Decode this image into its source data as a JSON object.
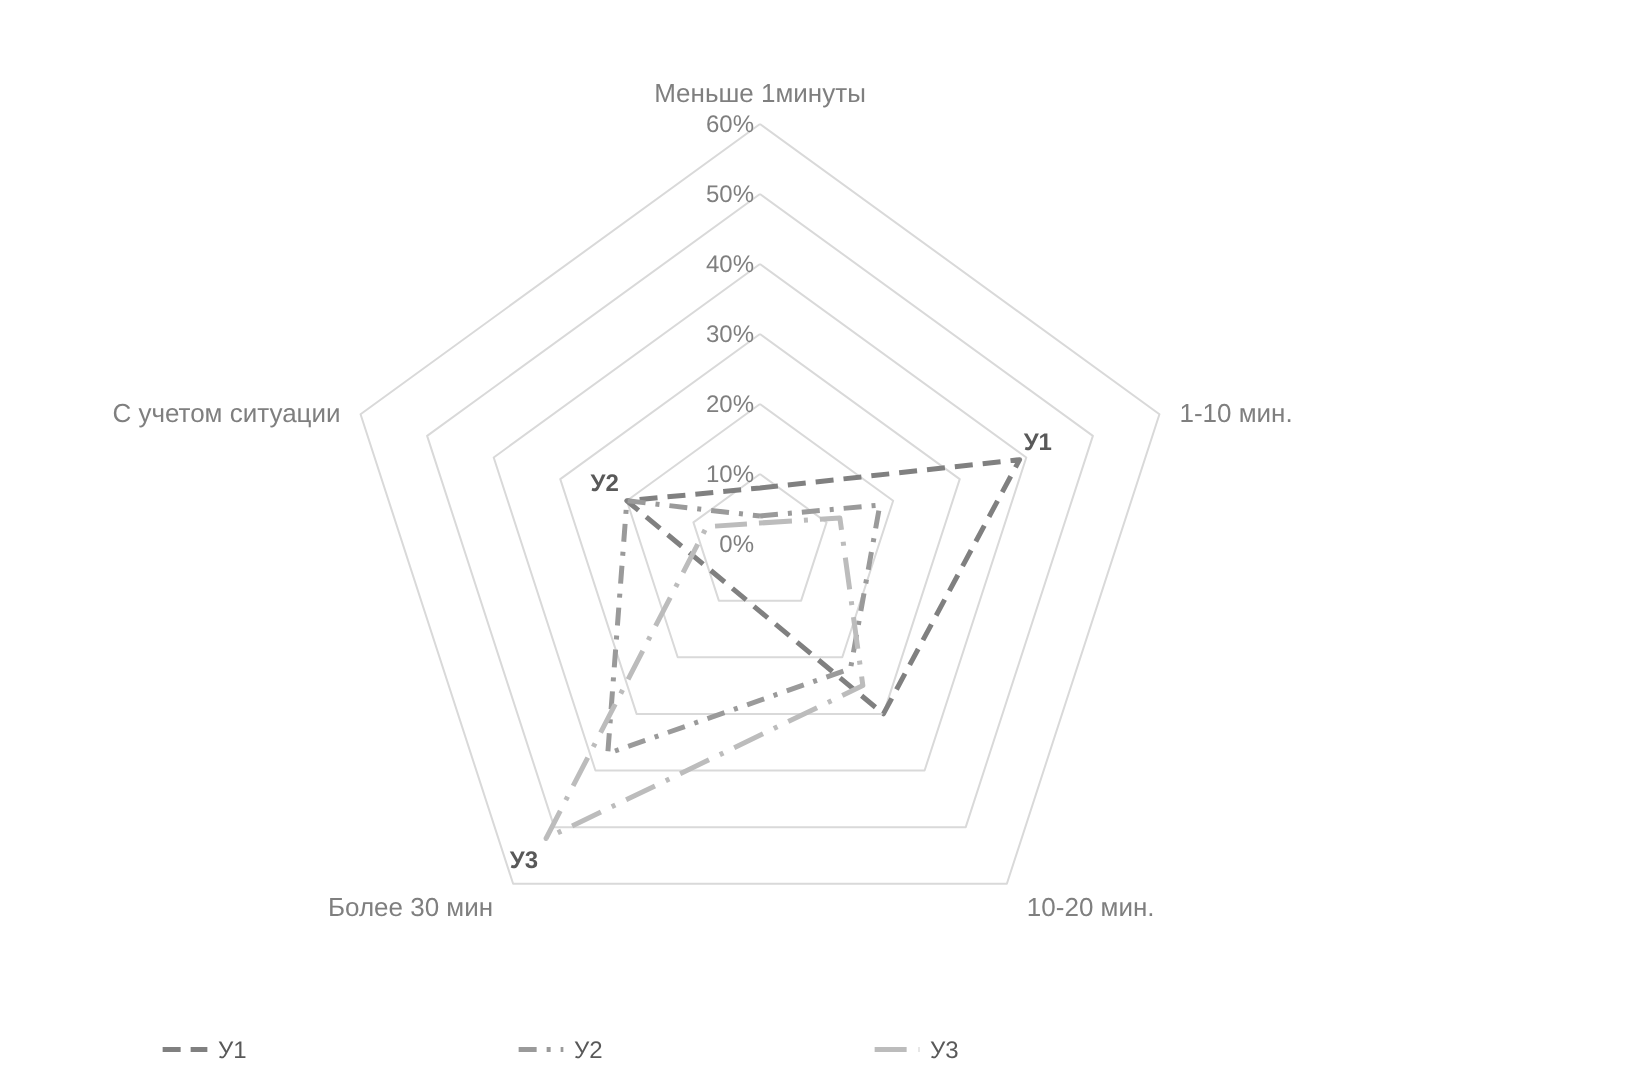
{
  "chart_data": {
    "type": "radar",
    "categories": [
      "Меньше 1минуты",
      "1-10 мин.",
      "10-20 мин.",
      "Более 30 мин",
      "С учетом ситуации"
    ],
    "ylim": [
      0,
      60
    ],
    "yticks": [
      {
        "value": 0,
        "label": "0%"
      },
      {
        "value": 10,
        "label": "10%"
      },
      {
        "value": 20,
        "label": "20%"
      },
      {
        "value": 30,
        "label": "30%"
      },
      {
        "value": 40,
        "label": "40%"
      },
      {
        "value": 50,
        "label": "50%"
      },
      {
        "value": 60,
        "label": "60%"
      }
    ],
    "grid": true,
    "legend": "bottom",
    "series": [
      {
        "name": "У1",
        "color": "#808080",
        "line_style": "dashed",
        "values": [
          8,
          39,
          30,
          null,
          20
        ],
        "value_labels": [
          null,
          "У1",
          null,
          null,
          null
        ]
      },
      {
        "name": "У2",
        "color": "#9a9a9a",
        "line_style": "dashdot",
        "values": [
          4,
          18,
          22,
          37,
          20
        ],
        "value_labels": [
          null,
          null,
          null,
          null,
          "У2"
        ]
      },
      {
        "name": "У3",
        "color": "#bcbcbc",
        "line_style": "longdashdot",
        "values": [
          3,
          12,
          25,
          52,
          8
        ],
        "value_labels": [
          null,
          null,
          null,
          "У3",
          null
        ]
      }
    ]
  }
}
